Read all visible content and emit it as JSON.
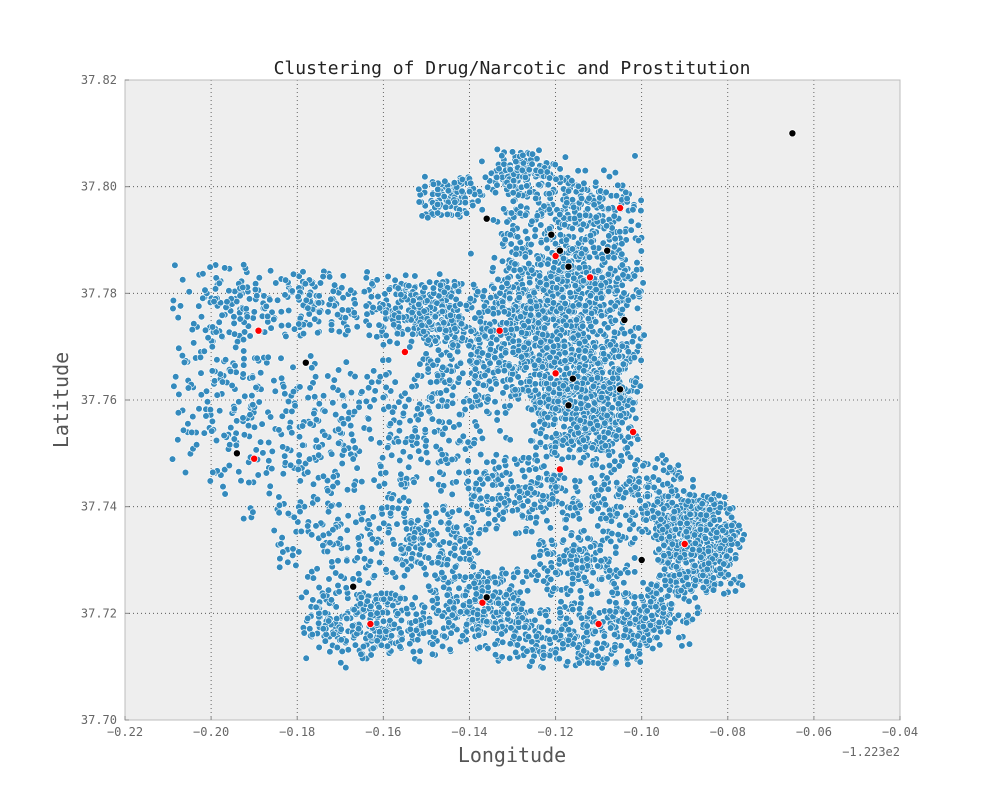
{
  "chart_data": {
    "type": "scatter",
    "title": "Clustering of Drug/Narcotic and Prostitution",
    "xlabel": "Longitude",
    "ylabel": "Latitude",
    "x_offset_label": "−1.223e2",
    "xlim": [
      -0.22,
      -0.04
    ],
    "ylim": [
      37.7,
      37.82
    ],
    "xticks": [
      "−0.22",
      "−0.20",
      "−0.18",
      "−0.16",
      "−0.14",
      "−0.12",
      "−0.10",
      "−0.08",
      "−0.06",
      "−0.04"
    ],
    "xtick_values": [
      -0.22,
      -0.2,
      -0.18,
      -0.16,
      -0.14,
      -0.12,
      -0.1,
      -0.08,
      -0.06,
      -0.04
    ],
    "yticks": [
      "37.70",
      "37.72",
      "37.74",
      "37.76",
      "37.78",
      "37.80",
      "37.82"
    ],
    "ytick_values": [
      37.7,
      37.72,
      37.74,
      37.76,
      37.78,
      37.8,
      37.82
    ],
    "grid": true,
    "background_color": "#eeeeee",
    "colors": {
      "incidents": "#348abd",
      "centroid_red": "#ff0000",
      "centroid_black": "#000000"
    },
    "series": [
      {
        "color": "#ff0000",
        "points": [
          [
            -0.105,
            37.796
          ],
          [
            -0.12,
            37.787
          ],
          [
            -0.112,
            37.783
          ],
          [
            -0.133,
            37.773
          ],
          [
            -0.189,
            37.773
          ],
          [
            -0.155,
            37.769
          ],
          [
            -0.12,
            37.765
          ],
          [
            -0.102,
            37.754
          ],
          [
            -0.19,
            37.749
          ],
          [
            -0.119,
            37.747
          ],
          [
            -0.09,
            37.733
          ],
          [
            -0.137,
            37.722
          ],
          [
            -0.163,
            37.718
          ],
          [
            -0.11,
            37.718
          ]
        ]
      },
      {
        "color": "#000000",
        "points": [
          [
            -0.065,
            37.81
          ],
          [
            -0.136,
            37.794
          ],
          [
            -0.121,
            37.791
          ],
          [
            -0.119,
            37.788
          ],
          [
            -0.108,
            37.788
          ],
          [
            -0.117,
            37.785
          ],
          [
            -0.104,
            37.775
          ],
          [
            -0.178,
            37.767
          ],
          [
            -0.116,
            37.764
          ],
          [
            -0.105,
            37.762
          ],
          [
            -0.117,
            37.759
          ],
          [
            -0.194,
            37.75
          ],
          [
            -0.1,
            37.73
          ],
          [
            -0.167,
            37.725
          ],
          [
            -0.136,
            37.723
          ]
        ]
      }
    ],
    "cloud_regions": [
      {
        "cx": -0.117,
        "cy": 37.782,
        "rx": 0.017,
        "ry": 0.021,
        "n": 1100
      },
      {
        "cx": -0.113,
        "cy": 37.76,
        "rx": 0.012,
        "ry": 0.011,
        "n": 650
      },
      {
        "cx": -0.132,
        "cy": 37.77,
        "rx": 0.02,
        "ry": 0.012,
        "n": 500
      },
      {
        "cx": -0.15,
        "cy": 37.776,
        "rx": 0.01,
        "ry": 0.006,
        "n": 220
      },
      {
        "cx": -0.145,
        "cy": 37.798,
        "rx": 0.008,
        "ry": 0.004,
        "n": 120
      },
      {
        "cx": -0.128,
        "cy": 37.803,
        "rx": 0.01,
        "ry": 0.004,
        "n": 120
      },
      {
        "cx": -0.175,
        "cy": 37.778,
        "rx": 0.028,
        "ry": 0.006,
        "n": 240
      },
      {
        "cx": -0.198,
        "cy": 37.765,
        "rx": 0.011,
        "ry": 0.02,
        "n": 180
      },
      {
        "cx": -0.173,
        "cy": 37.752,
        "rx": 0.022,
        "ry": 0.016,
        "n": 300
      },
      {
        "cx": -0.145,
        "cy": 37.752,
        "rx": 0.014,
        "ry": 0.017,
        "n": 150
      },
      {
        "cx": -0.125,
        "cy": 37.742,
        "rx": 0.016,
        "ry": 0.007,
        "n": 220
      },
      {
        "cx": -0.087,
        "cy": 37.733,
        "rx": 0.01,
        "ry": 0.009,
        "n": 600
      },
      {
        "cx": -0.1,
        "cy": 37.742,
        "rx": 0.012,
        "ry": 0.007,
        "n": 200
      },
      {
        "cx": -0.137,
        "cy": 37.721,
        "rx": 0.011,
        "ry": 0.008,
        "n": 280
      },
      {
        "cx": -0.163,
        "cy": 37.718,
        "rx": 0.015,
        "ry": 0.007,
        "n": 300
      },
      {
        "cx": -0.116,
        "cy": 37.716,
        "rx": 0.018,
        "ry": 0.006,
        "n": 260
      },
      {
        "cx": -0.114,
        "cy": 37.729,
        "rx": 0.012,
        "ry": 0.006,
        "n": 180
      },
      {
        "cx": -0.097,
        "cy": 37.72,
        "rx": 0.01,
        "ry": 0.006,
        "n": 150
      },
      {
        "cx": -0.17,
        "cy": 37.732,
        "rx": 0.015,
        "ry": 0.008,
        "n": 110
      },
      {
        "cx": -0.147,
        "cy": 37.733,
        "rx": 0.01,
        "ry": 0.007,
        "n": 120
      }
    ]
  }
}
